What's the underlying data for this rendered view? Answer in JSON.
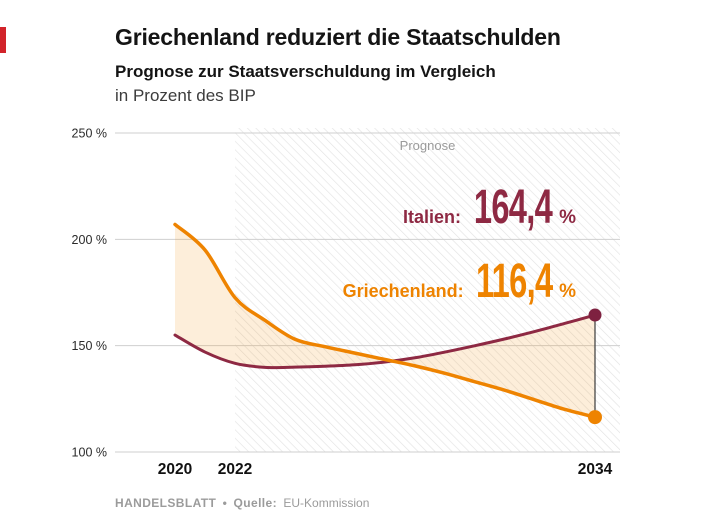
{
  "header": {
    "title": "Griechenland reduziert die Staatschulden",
    "subtitle_bold": "Prognose zur Staatsverschuldung im Vergleich",
    "subtitle_unit": "in Prozent des BIP"
  },
  "colors": {
    "greece_orange": "#EE8300",
    "italy_maroon": "#8E2943",
    "italy_dot": "#7E2140",
    "accent_red": "#d2232a",
    "grid_gray": "#cfcfcf",
    "hatch_gray": "#e3e3e3",
    "band_fill": "rgba(244,162,52,0.18)",
    "muted_text": "#9b9b9b"
  },
  "chart_data": {
    "type": "line",
    "x": [
      2020,
      2021,
      2022,
      2023,
      2024,
      2025,
      2026,
      2027,
      2028,
      2029,
      2030,
      2031,
      2032,
      2033,
      2034
    ],
    "series": [
      {
        "name": "Griechenland",
        "color": "#EE8300",
        "values": [
          207,
          195,
          172.6,
          161.9,
          153,
          149.5,
          146.5,
          143.5,
          140.5,
          137,
          133,
          129,
          124.5,
          120,
          116.4
        ]
      },
      {
        "name": "Italien",
        "color": "#8E2943",
        "values": [
          155,
          147,
          141.7,
          139.8,
          139.9,
          140.3,
          141,
          142.3,
          144.3,
          147,
          150,
          153.2,
          156.7,
          160.5,
          164.4
        ]
      }
    ],
    "ylim": [
      100,
      250
    ],
    "yticks": [
      100,
      150,
      200,
      250
    ],
    "ytick_labels": [
      "100 %",
      "150 %",
      "200 %",
      "250 %"
    ],
    "xticks": [
      2020,
      2022,
      2034
    ],
    "forecast_start": 2022,
    "forecast_label": "Prognose",
    "grid": true,
    "legend_position": "none",
    "annotations": [
      {
        "series": "Italien",
        "label": "Italien:",
        "value": "164,4",
        "unit": "%"
      },
      {
        "series": "Griechenland",
        "label": "Griechenland:",
        "value": "116,4",
        "unit": "%"
      }
    ]
  },
  "footer": {
    "source_brand": "HANDELSBLATT",
    "separator": "•",
    "source_label": "Quelle:",
    "source_value": "EU-Kommission"
  }
}
